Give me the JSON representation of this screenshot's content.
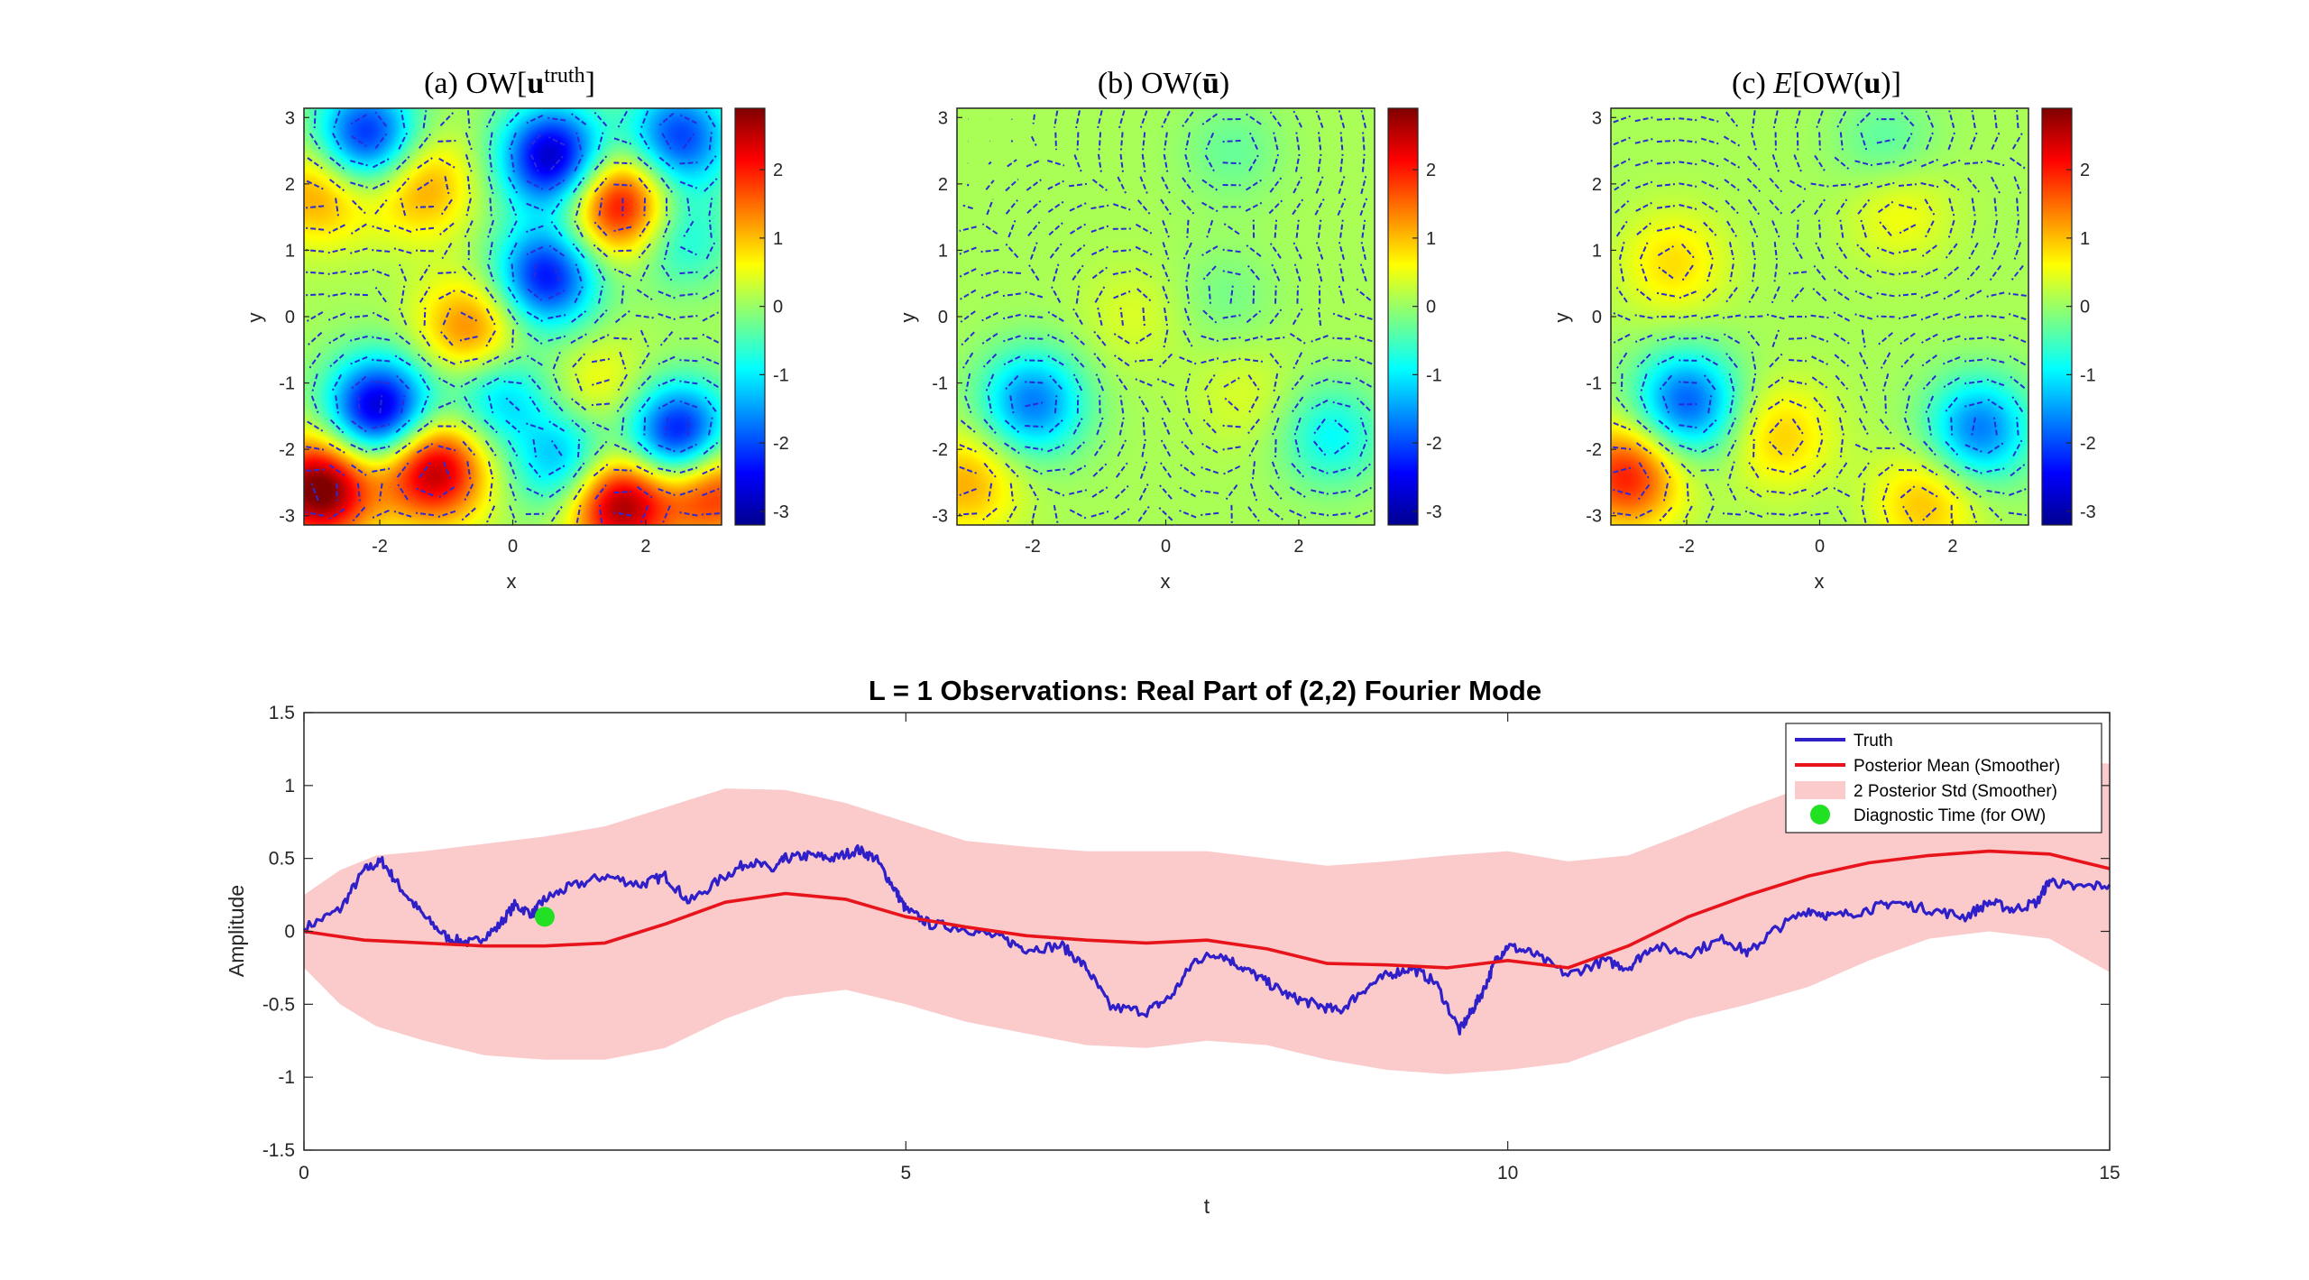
{
  "chart_data": [
    {
      "type": "heatmap",
      "panel": "a",
      "title_prefix": "(a) OW[",
      "title_bold": "u",
      "title_sup": "truth",
      "title_suffix": "]",
      "xlabel": "x",
      "ylabel": "y",
      "xlim": [
        -3.14,
        3.14
      ],
      "ylim": [
        -3.14,
        3.14
      ],
      "xticks": [
        "-2",
        "0",
        "2"
      ],
      "yticks": [
        "3",
        "2",
        "1",
        "0",
        "-1",
        "-2",
        "-3"
      ],
      "colorbar_ticks": [
        "2",
        "1",
        "0",
        "-1",
        "-2",
        "-3"
      ],
      "clim": [
        -3.2,
        2.9
      ],
      "blobs": [
        {
          "x": -2.2,
          "y": 2.7,
          "v": -2.5
        },
        {
          "x": 0.6,
          "y": 2.4,
          "v": -3.0
        },
        {
          "x": 2.5,
          "y": 2.7,
          "v": -2.2
        },
        {
          "x": -2.9,
          "y": 1.9,
          "v": 1.2
        },
        {
          "x": -1.4,
          "y": 2.0,
          "v": 1.2
        },
        {
          "x": 1.6,
          "y": 1.7,
          "v": 2.4
        },
        {
          "x": 2.5,
          "y": 1.2,
          "v": -1.0
        },
        {
          "x": 0.5,
          "y": 0.6,
          "v": -2.5
        },
        {
          "x": -0.6,
          "y": -0.2,
          "v": 1.4
        },
        {
          "x": -0.2,
          "y": -1.2,
          "v": -1.3
        },
        {
          "x": -2.0,
          "y": -1.4,
          "v": -3.0
        },
        {
          "x": 1.3,
          "y": -1.1,
          "v": 0.6
        },
        {
          "x": 2.5,
          "y": -1.8,
          "v": -2.8
        },
        {
          "x": 0.8,
          "y": -2.2,
          "v": -1.6
        },
        {
          "x": -1.2,
          "y": -2.3,
          "v": 2.6
        },
        {
          "x": -2.9,
          "y": -2.6,
          "v": 3.0
        },
        {
          "x": 1.6,
          "y": -2.8,
          "v": 2.8
        },
        {
          "x": 3.0,
          "y": -2.6,
          "v": 2.0
        }
      ]
    },
    {
      "type": "heatmap",
      "panel": "b",
      "title_prefix": "(b) OW(",
      "title_bold": "ū",
      "title_sup": "",
      "title_suffix": ")",
      "xlabel": "x",
      "ylabel": "y",
      "xlim": [
        -3.14,
        3.14
      ],
      "ylim": [
        -3.14,
        3.14
      ],
      "xticks": [
        "-2",
        "0",
        "2"
      ],
      "yticks": [
        "3",
        "2",
        "1",
        "0",
        "-1",
        "-2",
        "-3"
      ],
      "colorbar_ticks": [
        "2",
        "1",
        "0",
        "-1",
        "-2",
        "-3"
      ],
      "clim": [
        -3.2,
        2.9
      ],
      "blobs": [
        {
          "x": -2.0,
          "y": -1.3,
          "v": -1.8
        },
        {
          "x": 2.5,
          "y": -1.8,
          "v": -1.0
        },
        {
          "x": -3.0,
          "y": -2.5,
          "v": 1.0
        },
        {
          "x": 1.0,
          "y": 2.5,
          "v": -0.4
        },
        {
          "x": 0.9,
          "y": 0.3,
          "v": -0.3
        },
        {
          "x": -0.5,
          "y": 0.0,
          "v": 0.3
        },
        {
          "x": 1.2,
          "y": -1.2,
          "v": 0.3
        }
      ]
    },
    {
      "type": "heatmap",
      "panel": "c",
      "title_prefix": "(c) ",
      "title_italic": "E",
      "title_mid": "[OW(",
      "title_bold": "u",
      "title_sup": "",
      "title_suffix": ")]",
      "xlabel": "x",
      "ylabel": "y",
      "xlim": [
        -3.14,
        3.14
      ],
      "ylim": [
        -3.14,
        3.14
      ],
      "xticks": [
        "-2",
        "0",
        "2"
      ],
      "yticks": [
        "3",
        "2",
        "1",
        "0",
        "-1",
        "-2",
        "-3"
      ],
      "colorbar_ticks": [
        "2",
        "1",
        "0",
        "-1",
        "-2",
        "-3"
      ],
      "clim": [
        -3.2,
        2.9
      ],
      "blobs": [
        {
          "x": -2.0,
          "y": -1.3,
          "v": -2.0
        },
        {
          "x": 2.4,
          "y": -1.7,
          "v": -1.8
        },
        {
          "x": -2.9,
          "y": -2.4,
          "v": 1.9
        },
        {
          "x": -2.2,
          "y": 0.8,
          "v": 0.7
        },
        {
          "x": 1.0,
          "y": 2.6,
          "v": -0.5
        },
        {
          "x": 1.2,
          "y": 1.6,
          "v": 0.5
        },
        {
          "x": -0.6,
          "y": -1.8,
          "v": 0.8
        },
        {
          "x": 1.6,
          "y": -2.8,
          "v": 0.9
        }
      ]
    },
    {
      "type": "line",
      "title": "L = 1 Observations: Real Part of (2,2) Fourier Mode",
      "xlabel": "t",
      "ylabel": "Amplitude",
      "xlim": [
        0,
        15
      ],
      "ylim": [
        -1.5,
        1.5
      ],
      "xticks": [
        "0",
        "5",
        "10",
        "15"
      ],
      "yticks": [
        "1.5",
        "1",
        "0.5",
        "0",
        "-0.5",
        "-1",
        "-1.5"
      ],
      "legend_position": "top-right",
      "series": [
        {
          "name": "Truth",
          "color": "#2f1fc8",
          "x": [
            0,
            0.3,
            0.5,
            0.65,
            0.8,
            1.0,
            1.2,
            1.4,
            1.6,
            1.75,
            1.9,
            2.0,
            2.2,
            2.5,
            2.8,
            3.0,
            3.2,
            3.5,
            3.7,
            3.9,
            4.0,
            4.2,
            4.4,
            4.6,
            4.75,
            4.9,
            5.0,
            5.2,
            5.5,
            5.8,
            6.0,
            6.3,
            6.5,
            6.7,
            7.0,
            7.2,
            7.4,
            7.6,
            7.8,
            8.0,
            8.2,
            8.4,
            8.6,
            8.8,
            9.0,
            9.2,
            9.4,
            9.6,
            9.7,
            9.8,
            9.9,
            10.0,
            10.2,
            10.5,
            10.8,
            11.0,
            11.2,
            11.5,
            11.8,
            12.0,
            12.2,
            12.5,
            12.7,
            13.0,
            13.2,
            13.5,
            13.8,
            14.0,
            14.2,
            14.4,
            14.5,
            14.7,
            15.0
          ],
          "y": [
            0.02,
            0.15,
            0.42,
            0.48,
            0.3,
            0.1,
            -0.05,
            -0.08,
            0.02,
            0.18,
            0.12,
            0.22,
            0.3,
            0.38,
            0.32,
            0.38,
            0.2,
            0.38,
            0.48,
            0.42,
            0.5,
            0.52,
            0.5,
            0.56,
            0.5,
            0.3,
            0.15,
            0.05,
            0.02,
            -0.05,
            -0.12,
            -0.1,
            -0.25,
            -0.52,
            -0.55,
            -0.45,
            -0.2,
            -0.15,
            -0.25,
            -0.35,
            -0.45,
            -0.5,
            -0.55,
            -0.4,
            -0.3,
            -0.25,
            -0.35,
            -0.68,
            -0.55,
            -0.4,
            -0.2,
            -0.1,
            -0.15,
            -0.3,
            -0.2,
            -0.25,
            -0.1,
            -0.15,
            -0.05,
            -0.15,
            0.0,
            0.15,
            0.1,
            0.15,
            0.2,
            0.15,
            0.1,
            0.2,
            0.15,
            0.2,
            0.35,
            0.3,
            0.32
          ]
        },
        {
          "name": "Posterior Mean (Smoother)",
          "color": "#e8141c",
          "x": [
            0,
            0.5,
            1.0,
            1.5,
            2.0,
            2.5,
            3.0,
            3.5,
            4.0,
            4.5,
            5.0,
            5.5,
            6.0,
            6.5,
            7.0,
            7.5,
            8.0,
            8.5,
            9.0,
            9.5,
            10.0,
            10.5,
            11.0,
            11.5,
            12.0,
            12.5,
            13.0,
            13.5,
            14.0,
            14.5,
            15.0
          ],
          "y": [
            0.0,
            -0.06,
            -0.08,
            -0.1,
            -0.1,
            -0.08,
            0.05,
            0.2,
            0.26,
            0.22,
            0.1,
            0.03,
            -0.03,
            -0.06,
            -0.08,
            -0.06,
            -0.12,
            -0.22,
            -0.23,
            -0.25,
            -0.2,
            -0.25,
            -0.1,
            0.1,
            0.25,
            0.38,
            0.47,
            0.52,
            0.55,
            0.53,
            0.43
          ]
        },
        {
          "name": "2 Posterior Std (Smoother)",
          "color": "#fbcacb",
          "x": [
            0,
            0.3,
            0.6,
            1.0,
            1.5,
            2.0,
            2.5,
            3.0,
            3.5,
            4.0,
            4.5,
            5.0,
            5.5,
            6.0,
            6.5,
            7.0,
            7.5,
            8.0,
            8.5,
            9.0,
            9.5,
            10.0,
            10.5,
            11.0,
            11.5,
            12.0,
            12.5,
            13.0,
            13.5,
            14.0,
            14.5,
            15.0
          ],
          "upper": [
            0.25,
            0.42,
            0.52,
            0.55,
            0.6,
            0.65,
            0.72,
            0.85,
            0.98,
            0.97,
            0.88,
            0.75,
            0.62,
            0.58,
            0.55,
            0.55,
            0.55,
            0.5,
            0.45,
            0.48,
            0.52,
            0.55,
            0.48,
            0.52,
            0.68,
            0.85,
            1.0,
            1.1,
            1.12,
            1.15,
            1.18,
            1.15
          ],
          "lower": [
            -0.25,
            -0.5,
            -0.65,
            -0.75,
            -0.85,
            -0.88,
            -0.88,
            -0.8,
            -0.6,
            -0.45,
            -0.4,
            -0.5,
            -0.62,
            -0.7,
            -0.78,
            -0.8,
            -0.75,
            -0.78,
            -0.88,
            -0.95,
            -0.98,
            -0.95,
            -0.9,
            -0.75,
            -0.6,
            -0.5,
            -0.38,
            -0.2,
            -0.05,
            0.0,
            -0.05,
            -0.28
          ]
        },
        {
          "name": "Diagnostic Time (for OW)",
          "color": "#22e022",
          "type": "scatter",
          "x": [
            2.0
          ],
          "y": [
            0.1
          ]
        }
      ]
    }
  ]
}
